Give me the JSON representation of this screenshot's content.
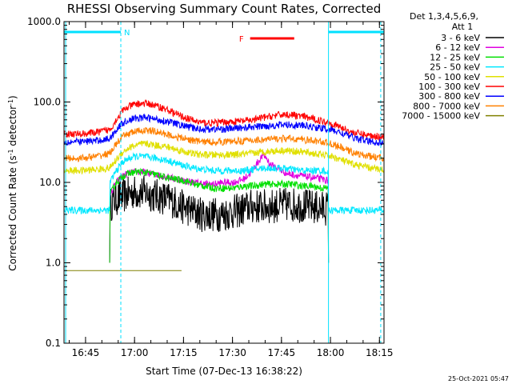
{
  "chart_data": {
    "type": "line",
    "title": "RHESSI Observing Summary Count Rates, Corrected",
    "xlabel": "Start Time (07-Dec-13 16:38:22)",
    "ylabel": "Corrected Count Rate (s^-1 detector^-1)",
    "ylabel_main": "Corrected Count Rate (s",
    "ylabel_sup1": "-1",
    "ylabel_mid": " detector",
    "ylabel_sup2": "-1",
    "ylabel_end": ")",
    "y_scale": "log",
    "ylim": [
      0.1,
      1000
    ],
    "xlim_minutes": [
      0,
      98
    ],
    "x_ticks": [
      {
        "label": "16:45",
        "minute": 6.6
      },
      {
        "label": "17:00",
        "minute": 21.6
      },
      {
        "label": "17:15",
        "minute": 36.6
      },
      {
        "label": "17:30",
        "minute": 51.6
      },
      {
        "label": "17:45",
        "minute": 66.6
      },
      {
        "label": "18:00",
        "minute": 81.6
      },
      {
        "label": "18:15",
        "minute": 96.6
      }
    ],
    "y_ticks": [
      {
        "label": "0.1",
        "value": 0.1
      },
      {
        "label": "1.0",
        "value": 1
      },
      {
        "label": "10.0",
        "value": 10
      },
      {
        "label": "100.0",
        "value": 100
      },
      {
        "label": "1000.0",
        "value": 1000
      }
    ],
    "legend_title_1": "Det 1,3,4,5,6,9,",
    "legend_title_2": "Att 1",
    "legend_position": "right",
    "series": [
      {
        "name": "3 - 6 keV",
        "color": "#000000",
        "x": [
          14,
          14.1,
          15,
          17,
          19,
          21,
          23,
          25,
          27,
          30,
          33,
          36,
          39,
          42,
          45,
          48,
          51,
          54,
          57,
          60,
          63,
          66,
          69,
          72,
          75,
          78,
          80.9,
          81
        ],
        "y": [
          1,
          5,
          6,
          6.5,
          7,
          7.5,
          7.5,
          7.5,
          7,
          6.5,
          6,
          5,
          4.5,
          4,
          4,
          4,
          4.2,
          4.5,
          5,
          5,
          5,
          5.2,
          5.3,
          5.2,
          5,
          4.8,
          4.8,
          1
        ]
      },
      {
        "name": "6 - 12 keV",
        "color": "#e000e0",
        "x": [
          14,
          14.1,
          16,
          18,
          20,
          22,
          24,
          26,
          28,
          31,
          34,
          37,
          40,
          43,
          46,
          49,
          52,
          55,
          57,
          59,
          61,
          62,
          63,
          64,
          66,
          68,
          70,
          73,
          76,
          79,
          80.9,
          81
        ],
        "y": [
          1,
          7,
          10,
          12,
          13,
          13.5,
          13.5,
          13,
          12.5,
          12,
          11,
          10.5,
          10,
          9.5,
          9.5,
          10,
          10,
          11,
          13,
          17,
          22,
          20,
          17,
          16,
          14.5,
          13,
          12.5,
          12,
          11.5,
          11,
          10.5,
          1
        ]
      },
      {
        "name": "12 - 25 keV",
        "color": "#00e000",
        "x": [
          14,
          14.1,
          16,
          18,
          20,
          22,
          24,
          26,
          28,
          31,
          34,
          37,
          40,
          43,
          46,
          49,
          52,
          55,
          58,
          61,
          64,
          67,
          70,
          73,
          76,
          79,
          80.9,
          81
        ],
        "y": [
          1,
          7,
          10,
          12,
          13,
          13.5,
          13.5,
          13,
          12.5,
          11.5,
          11,
          10.5,
          9.5,
          9,
          8.5,
          8.5,
          8.5,
          9,
          9,
          9.5,
          9.5,
          9.5,
          9.5,
          9,
          9,
          8.5,
          8.5,
          1
        ]
      },
      {
        "name": "25 - 50 keV",
        "color": "#00e8ff",
        "x": [
          0,
          14,
          14.1,
          16,
          18,
          20,
          22,
          24,
          26,
          28,
          31,
          34,
          37,
          40,
          43,
          46,
          49,
          52,
          55,
          58,
          61,
          64,
          67,
          70,
          73,
          76,
          79,
          80.9,
          81,
          98
        ],
        "y": [
          4.5,
          4.5,
          10,
          14,
          18,
          20,
          21,
          21,
          20.5,
          20,
          19,
          17.5,
          16,
          15,
          14.5,
          14,
          14,
          14,
          14,
          14.5,
          15,
          15,
          15,
          14.5,
          14,
          14,
          14,
          13.5,
          4.5,
          4.5
        ]
      },
      {
        "name": "50 - 100 keV",
        "color": "#e0e000",
        "x": [
          0,
          5,
          10,
          14,
          16,
          18,
          20,
          22,
          24,
          26,
          28,
          31,
          34,
          37,
          40,
          43,
          46,
          49,
          52,
          55,
          58,
          61,
          64,
          67,
          70,
          73,
          76,
          79,
          82,
          85,
          88,
          91,
          94,
          98
        ],
        "y": [
          14,
          14,
          14.5,
          15,
          19,
          24,
          27,
          29,
          30,
          30,
          29,
          28,
          26,
          24,
          22.5,
          22,
          22,
          22,
          22,
          22.5,
          23,
          24,
          24.5,
          25,
          24.5,
          24,
          23,
          22,
          21,
          19,
          17,
          16,
          15,
          14.5
        ]
      },
      {
        "name": "100 - 300 keV",
        "color": "#ff0000",
        "x": [
          0,
          5,
          10,
          14,
          16,
          18,
          20,
          22,
          24,
          26,
          28,
          31,
          34,
          37,
          40,
          43,
          46,
          49,
          52,
          55,
          58,
          61,
          64,
          67,
          70,
          73,
          76,
          79,
          82,
          85,
          88,
          91,
          94,
          98
        ],
        "y": [
          40,
          40,
          42,
          45,
          60,
          78,
          88,
          94,
          96,
          95,
          90,
          82,
          72,
          64,
          58,
          55,
          55,
          56,
          57,
          58,
          60,
          64,
          67,
          70,
          69,
          66,
          62,
          58,
          54,
          48,
          42,
          40,
          38,
          37
        ]
      },
      {
        "name": "300 - 800 keV",
        "color": "#0000ff",
        "x": [
          0,
          5,
          10,
          14,
          16,
          18,
          20,
          22,
          24,
          26,
          28,
          31,
          34,
          37,
          40,
          43,
          46,
          49,
          52,
          55,
          58,
          61,
          64,
          67,
          70,
          73,
          76,
          79,
          82,
          85,
          88,
          91,
          94,
          98
        ],
        "y": [
          32,
          32,
          33,
          35,
          45,
          55,
          60,
          63,
          64,
          63,
          61,
          58,
          54,
          50,
          47,
          46,
          46,
          46,
          47,
          48,
          49,
          50,
          51,
          52,
          52,
          51,
          49,
          47,
          45,
          41,
          37,
          34,
          32,
          31
        ]
      },
      {
        "name": "800 - 7000 keV",
        "color": "#ff8000",
        "x": [
          0,
          5,
          10,
          14,
          16,
          18,
          20,
          22,
          24,
          26,
          28,
          31,
          34,
          37,
          40,
          43,
          46,
          49,
          52,
          55,
          58,
          61,
          64,
          67,
          70,
          73,
          76,
          79,
          82,
          85,
          88,
          91,
          94,
          98
        ],
        "y": [
          20,
          20,
          21,
          23,
          30,
          37,
          41,
          43,
          44,
          44,
          43,
          40,
          37,
          35,
          33,
          32,
          32,
          32,
          32.5,
          33,
          33.5,
          34,
          34.5,
          35,
          35,
          34,
          33,
          32,
          30,
          27,
          24,
          22,
          21,
          20
        ]
      },
      {
        "name": "7000 - 15000 keV",
        "color": "#808000",
        "x": [
          0,
          2,
          4,
          6,
          8,
          10,
          12,
          14,
          16,
          18,
          20,
          22,
          24,
          26,
          28,
          30,
          32,
          34,
          36
        ],
        "y": [
          0.8,
          0.8,
          0.8,
          0.8,
          0.8,
          0.8,
          0.8,
          0.8,
          0.8,
          0.8,
          0.8,
          0.8,
          0.8,
          0.8,
          0.8,
          0.8,
          0.8,
          0.8,
          0.8
        ]
      }
    ],
    "annotations": [
      {
        "label": "N",
        "color": "#00e0ff",
        "x_start": 0,
        "x_end": 17.4
      },
      {
        "label": "",
        "color": "#00e0ff",
        "x_start": 81,
        "x_end": 98
      },
      {
        "label": "F",
        "color": "#ff0000",
        "x_start": 57,
        "x_end": 70.5
      }
    ],
    "vertical_markers": [
      {
        "minute": 0.5,
        "style": "solid",
        "color": "#00e0ff"
      },
      {
        "minute": 17.4,
        "style": "dashed",
        "color": "#00e0ff"
      },
      {
        "minute": 81,
        "style": "solid",
        "color": "#00e0ff"
      },
      {
        "minute": 97,
        "style": "dashed",
        "color": "#00e0ff"
      }
    ],
    "footer_date": "25-Oct-2021 05:47"
  }
}
